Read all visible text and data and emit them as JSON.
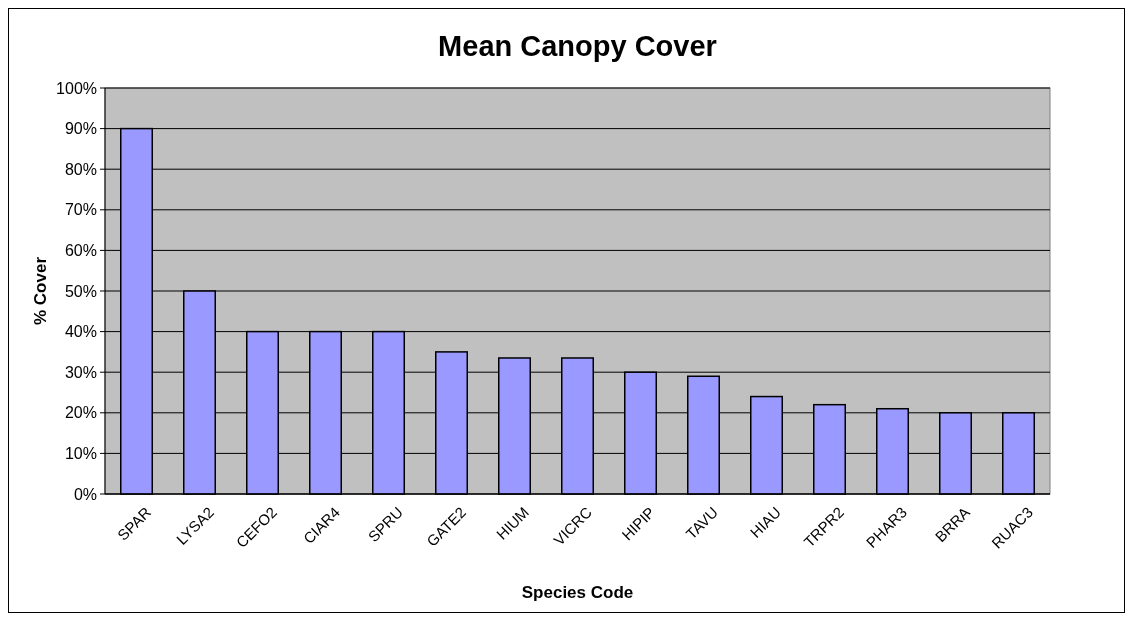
{
  "chart_data": {
    "type": "bar",
    "title": "Mean Canopy Cover",
    "xlabel": "Species Code",
    "ylabel": "% Cover",
    "categories": [
      "SPAR",
      "LYSA2",
      "CEFO2",
      "CIAR4",
      "SPRU",
      "GATE2",
      "HIUM",
      "VICRC",
      "HIPIP",
      "TAVU",
      "HIAU",
      "TRPR2",
      "PHAR3",
      "BRRA",
      "RUAC3"
    ],
    "values": [
      90,
      50,
      40,
      40,
      40,
      35,
      33.5,
      33.5,
      30,
      29,
      24,
      22,
      21,
      20,
      20
    ],
    "color": "#9999ff",
    "ylim": [
      0,
      100
    ],
    "yticks": [
      {
        "value": 0,
        "label": "0%"
      },
      {
        "value": 10,
        "label": "10%"
      },
      {
        "value": 20,
        "label": "20%"
      },
      {
        "value": 30,
        "label": "30%"
      },
      {
        "value": 40,
        "label": "40%"
      },
      {
        "value": 50,
        "label": "50%"
      },
      {
        "value": 60,
        "label": "60%"
      },
      {
        "value": 70,
        "label": "70%"
      },
      {
        "value": 80,
        "label": "80%"
      },
      {
        "value": 90,
        "label": "90%"
      },
      {
        "value": 100,
        "label": "100%"
      }
    ],
    "grid": "y"
  }
}
